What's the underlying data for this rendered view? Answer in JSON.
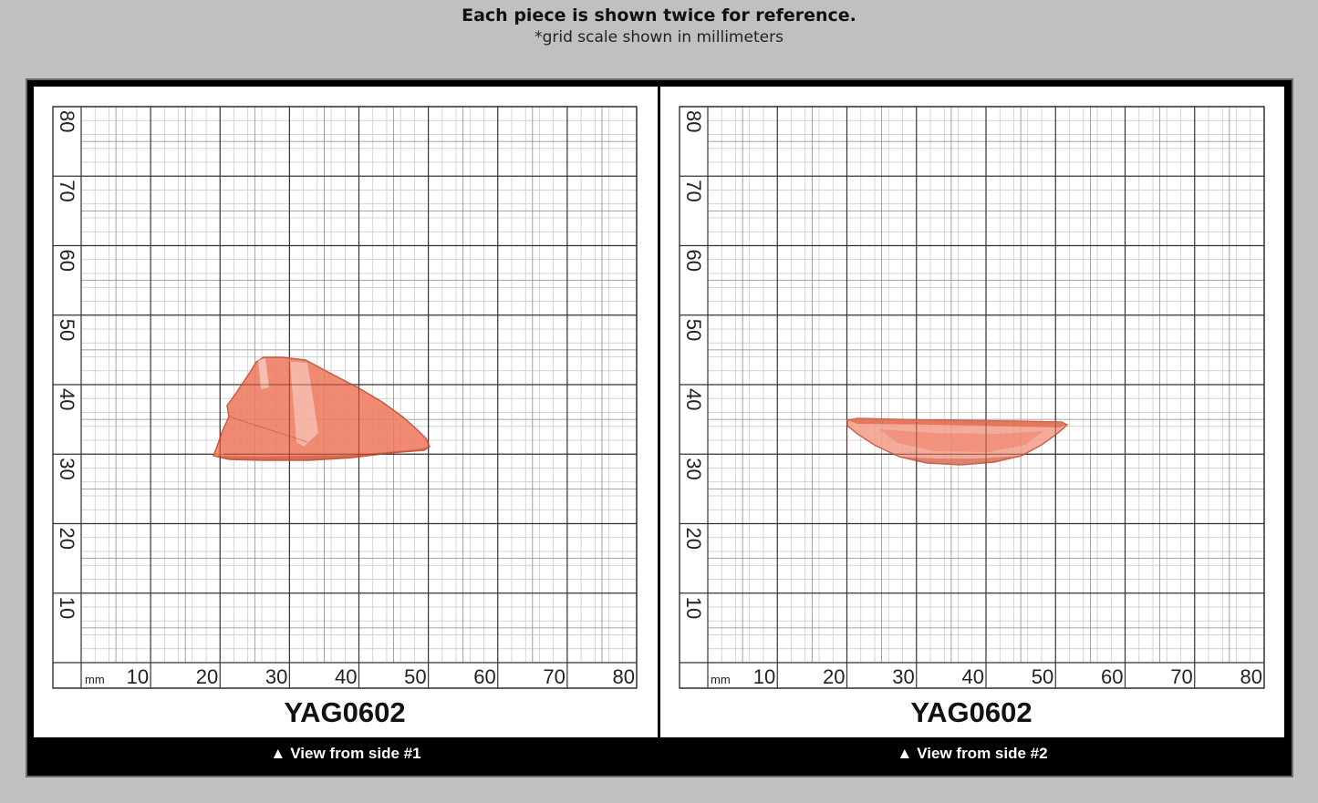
{
  "header": {
    "title": "Each piece is shown twice for reference.",
    "subtitle": "*grid scale shown in millimeters"
  },
  "panels": [
    {
      "label": "YAG0602",
      "caption": "View from side #1",
      "caption_icon": "up-triangle-icon",
      "unit": "mm",
      "x_ticks": [
        "10",
        "20",
        "30",
        "40",
        "50",
        "60",
        "70",
        "80"
      ],
      "y_ticks": [
        "10",
        "20",
        "30",
        "40",
        "50",
        "60",
        "70",
        "80"
      ]
    },
    {
      "label": "YAG0602",
      "caption": "View from side #2",
      "caption_icon": "up-triangle-icon",
      "unit": "mm",
      "x_ticks": [
        "10",
        "20",
        "30",
        "40",
        "50",
        "60",
        "70",
        "80"
      ],
      "y_ticks": [
        "10",
        "20",
        "30",
        "40",
        "50",
        "60",
        "70",
        "80"
      ]
    }
  ],
  "colors": {
    "background": "#c0c0c0",
    "frame": "#000000",
    "grid_major": "#333333",
    "grid_minor": "#bdbdbd",
    "gem": "#ee7a5e"
  }
}
